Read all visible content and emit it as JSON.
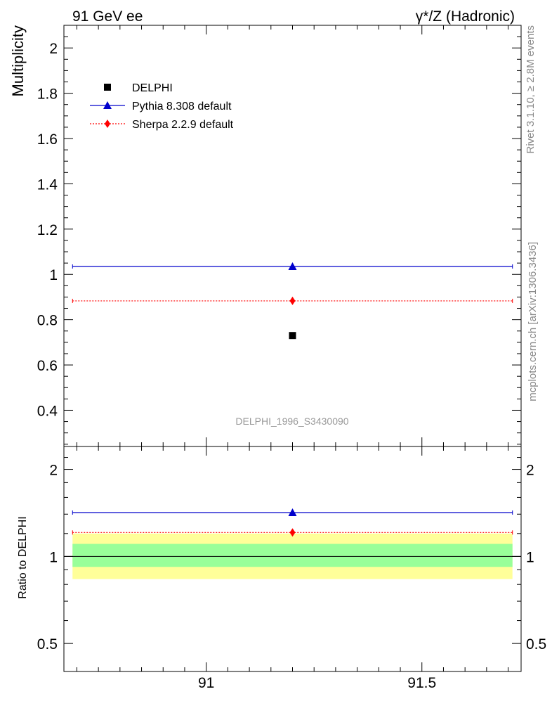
{
  "header": {
    "left": "91 GeV ee",
    "right": "γ*/Z (Hadronic)"
  },
  "side_text": {
    "rivet": "Rivet 3.1.10, ≥ 2.8M events",
    "mcplots": "mcplots.cern.ch [arXiv:1306.3436]"
  },
  "chart_data": [
    {
      "type": "scatter",
      "panel": "main",
      "ylabel": "Multiplicity",
      "watermark": "DELPHI_1996_S3430090",
      "xlim": [
        90.67,
        91.73
      ],
      "ylim": [
        0.24,
        2.1
      ],
      "yticks": [
        0.4,
        0.6,
        0.8,
        1,
        1.2,
        1.4,
        1.6,
        1.8,
        2
      ],
      "ytick_labels": [
        "0.4",
        "0.6",
        "0.8",
        "1",
        "1.2",
        "1.4",
        "1.6",
        "1.8",
        "2"
      ],
      "legend_position": "top-left",
      "series": [
        {
          "name": "DELPHI",
          "color": "#000000",
          "marker": "square",
          "x": [
            91.2
          ],
          "y": [
            0.73
          ]
        },
        {
          "name": "Pythia 8.308 default",
          "color": "#0000cc",
          "marker": "triangle",
          "line": "solid",
          "x": [
            91.2
          ],
          "y": [
            1.035
          ],
          "xrange": [
            90.69,
            91.71
          ]
        },
        {
          "name": "Sherpa 2.2.9 default",
          "color": "#ff0000",
          "marker": "diamond",
          "line": "dotted",
          "x": [
            91.2
          ],
          "y": [
            0.883
          ],
          "xrange": [
            90.69,
            91.71
          ]
        }
      ]
    },
    {
      "type": "scatter",
      "panel": "ratio",
      "ylabel": "Ratio to DELPHI",
      "xlim": [
        90.67,
        91.73
      ],
      "ylim": [
        0.4,
        2.4
      ],
      "log_y": true,
      "yticks": [
        0.5,
        1,
        2
      ],
      "ytick_labels": [
        "0.5",
        "1",
        "2"
      ],
      "xticks": [
        91,
        91.5
      ],
      "xtick_labels": [
        "91",
        "91.5"
      ],
      "bands": [
        {
          "color": "#ffff99",
          "low": 0.835,
          "high": 1.2
        },
        {
          "color": "#99ff99",
          "low": 0.92,
          "high": 1.105
        }
      ],
      "series": [
        {
          "name": "Pythia 8.308 default",
          "color": "#0000cc",
          "marker": "triangle",
          "line": "solid",
          "x": [
            91.2
          ],
          "y": [
            1.418
          ],
          "xrange": [
            90.69,
            91.71
          ]
        },
        {
          "name": "Sherpa 2.2.9 default",
          "color": "#ff0000",
          "marker": "diamond",
          "line": "dotted",
          "x": [
            91.2
          ],
          "y": [
            1.21
          ],
          "xrange": [
            90.69,
            91.71
          ]
        }
      ]
    }
  ]
}
